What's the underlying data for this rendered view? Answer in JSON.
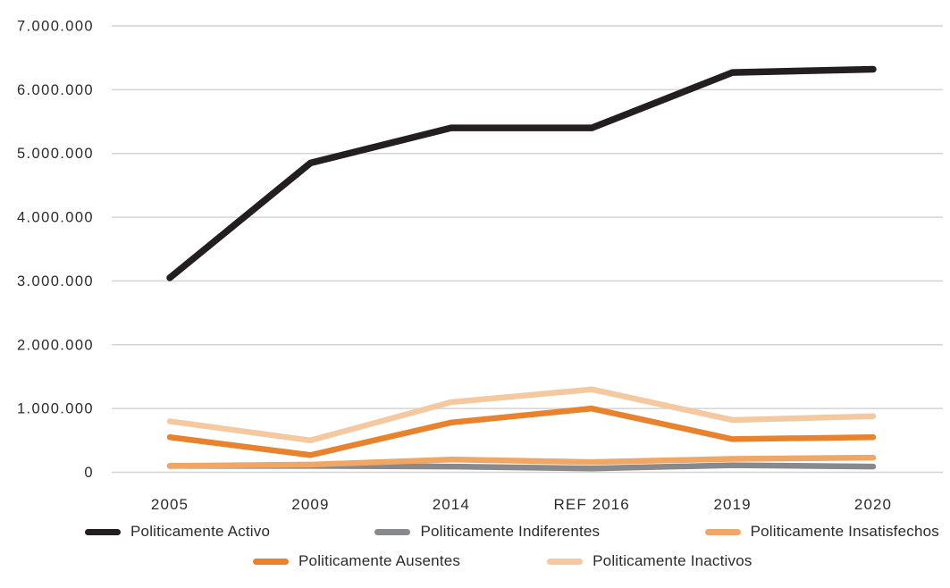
{
  "chart_data": {
    "type": "line",
    "title": "",
    "xlabel": "",
    "ylabel": "",
    "categories": [
      "2005",
      "2009",
      "2014",
      "REF 2016",
      "2019",
      "2020"
    ],
    "series": [
      {
        "name": "Politicamente Activo",
        "color": "#231f20",
        "values": [
          3050000,
          4850000,
          5400000,
          5400000,
          6270000,
          6320000
        ]
      },
      {
        "name": "Politicamente Indiferentes",
        "color": "#87898c",
        "values": [
          100000,
          100000,
          90000,
          60000,
          110000,
          90000
        ]
      },
      {
        "name": "Politicamente Insatisfechos",
        "color": "#f0a664",
        "values": [
          100000,
          120000,
          200000,
          160000,
          210000,
          230000
        ]
      },
      {
        "name": "Politicamente Ausentes",
        "color": "#e8822c",
        "values": [
          550000,
          270000,
          780000,
          1000000,
          520000,
          550000
        ]
      },
      {
        "name": "Politicamente Inactivos",
        "color": "#f4c9a0",
        "values": [
          800000,
          500000,
          1100000,
          1300000,
          820000,
          880000
        ]
      }
    ],
    "y_axis": {
      "min": 0,
      "max": 7000000,
      "step": 1000000,
      "tick_labels": [
        "0",
        "1.000.000",
        "2.000.000",
        "3.000.000",
        "4.000.000",
        "5.000.000",
        "6.000.000",
        "7.000.000"
      ]
    },
    "grid": true,
    "legend_position": "bottom",
    "legend_rows": [
      [
        0,
        1,
        2
      ],
      [
        3,
        4
      ]
    ],
    "draw_order": [
      4,
      3,
      1,
      2,
      0
    ]
  },
  "colors": {
    "gridline": "#d4d4d4",
    "text": "#2e2a2b",
    "background": "#ffffff"
  }
}
